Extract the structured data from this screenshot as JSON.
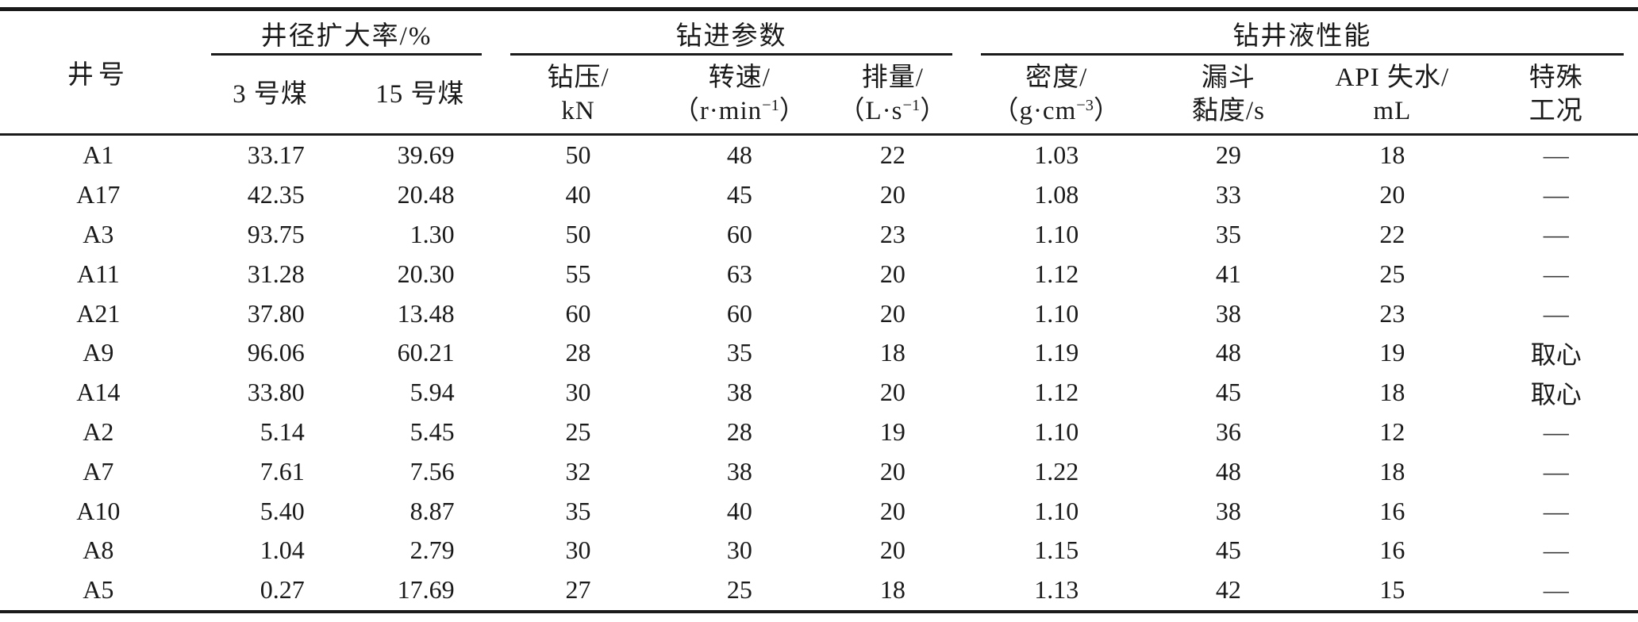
{
  "table": {
    "well_header": "井号",
    "groups": [
      {
        "label": "井径扩大率/%",
        "span": 2
      },
      {
        "label": "钻进参数",
        "span": 3
      },
      {
        "label": "钻井液性能",
        "span": 4
      }
    ],
    "subcolumns": [
      {
        "name": "coal-3",
        "lines": [
          [
            {
              "t": "3 号煤"
            }
          ]
        ]
      },
      {
        "name": "coal-15",
        "lines": [
          [
            {
              "t": "15 号煤"
            }
          ]
        ]
      },
      {
        "name": "wob",
        "lines": [
          [
            {
              "t": "钻压/"
            }
          ],
          [
            {
              "t": "kN"
            }
          ]
        ]
      },
      {
        "name": "rpm",
        "lines": [
          [
            {
              "t": "转速/"
            }
          ],
          [
            {
              "t": "（r·min"
            },
            {
              "t": "−1",
              "sup": true
            },
            {
              "t": "）"
            }
          ]
        ]
      },
      {
        "name": "flow-rate",
        "lines": [
          [
            {
              "t": "排量/"
            }
          ],
          [
            {
              "t": "（L·s"
            },
            {
              "t": "−1",
              "sup": true
            },
            {
              "t": "）"
            }
          ]
        ]
      },
      {
        "name": "density",
        "lines": [
          [
            {
              "t": "密度/"
            }
          ],
          [
            {
              "t": "（g·cm"
            },
            {
              "t": "−3",
              "sup": true
            },
            {
              "t": "）"
            }
          ]
        ]
      },
      {
        "name": "funnel-viscosity",
        "lines": [
          [
            {
              "t": "漏斗"
            }
          ],
          [
            {
              "t": "黏度/s"
            }
          ]
        ]
      },
      {
        "name": "api-fluid-loss",
        "lines": [
          [
            {
              "t": "API 失水/"
            }
          ],
          [
            {
              "t": "mL"
            }
          ]
        ]
      },
      {
        "name": "special-condition",
        "lines": [
          [
            {
              "t": "特殊"
            }
          ],
          [
            {
              "t": "工况"
            }
          ]
        ]
      }
    ],
    "column_ids": [
      "well",
      "coal-3",
      "coal-15",
      "wob",
      "rpm",
      "flow-rate",
      "density",
      "funnel-viscosity",
      "api-fluid-loss",
      "special-condition"
    ],
    "rows": [
      [
        "A1",
        "33.17",
        "39.69",
        "50",
        "48",
        "22",
        "1.03",
        "29",
        "18",
        "—"
      ],
      [
        "A17",
        "42.35",
        "20.48",
        "40",
        "45",
        "20",
        "1.08",
        "33",
        "20",
        "—"
      ],
      [
        "A3",
        "93.75",
        "1.30",
        "50",
        "60",
        "23",
        "1.10",
        "35",
        "22",
        "—"
      ],
      [
        "A11",
        "31.28",
        "20.30",
        "55",
        "63",
        "20",
        "1.12",
        "41",
        "25",
        "—"
      ],
      [
        "A21",
        "37.80",
        "13.48",
        "60",
        "60",
        "20",
        "1.10",
        "38",
        "23",
        "—"
      ],
      [
        "A9",
        "96.06",
        "60.21",
        "28",
        "35",
        "18",
        "1.19",
        "48",
        "19",
        "取心"
      ],
      [
        "A14",
        "33.80",
        "5.94",
        "30",
        "38",
        "20",
        "1.12",
        "45",
        "18",
        "取心"
      ],
      [
        "A2",
        "5.14",
        "5.45",
        "25",
        "28",
        "19",
        "1.10",
        "36",
        "12",
        "—"
      ],
      [
        "A7",
        "7.61",
        "7.56",
        "32",
        "38",
        "20",
        "1.22",
        "48",
        "18",
        "—"
      ],
      [
        "A10",
        "5.40",
        "8.87",
        "35",
        "40",
        "20",
        "1.10",
        "38",
        "16",
        "—"
      ],
      [
        "A8",
        "1.04",
        "2.79",
        "30",
        "30",
        "20",
        "1.15",
        "45",
        "16",
        "—"
      ],
      [
        "A5",
        "0.27",
        "17.69",
        "27",
        "25",
        "18",
        "1.13",
        "42",
        "15",
        "—"
      ]
    ]
  },
  "colors": {
    "text": "#1a1a1a",
    "rule": "#1a1a1a",
    "background": "#ffffff"
  }
}
